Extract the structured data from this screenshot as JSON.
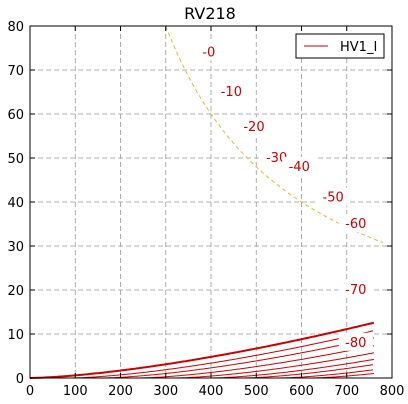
{
  "chart_data": {
    "type": "line",
    "title": "RV218",
    "xlabel": "",
    "ylabel": "",
    "xlim": [
      0,
      800
    ],
    "ylim": [
      0,
      80
    ],
    "x_ticks": [
      0,
      100,
      200,
      300,
      400,
      500,
      600,
      700,
      800
    ],
    "y_ticks": [
      0,
      10,
      20,
      30,
      40,
      50,
      60,
      70,
      80
    ],
    "grid": true,
    "legend": {
      "position": "top-right",
      "entries": [
        "HV1_I"
      ]
    },
    "colors": {
      "curves": "#cc0000",
      "dissipation": "#e8b830",
      "grid": "#999999"
    },
    "curves": [
      {
        "label": "-0",
        "v0": 0,
        "k": 0.0006,
        "emphasis": true
      },
      {
        "label": "-10",
        "v0": 90,
        "k": 0.00062
      },
      {
        "label": "-20",
        "v0": 160,
        "k": 0.00062
      },
      {
        "label": "-30",
        "v0": 240,
        "k": 0.00062
      },
      {
        "label": "-40",
        "v0": 320,
        "k": 0.00062
      },
      {
        "label": "-50",
        "v0": 400,
        "k": 0.00062
      },
      {
        "label": "-60",
        "v0": 470,
        "k": 0.00062
      },
      {
        "label": "-70",
        "v0": 550,
        "k": 0.00062
      },
      {
        "label": "-80",
        "v0": 620,
        "k": 0.00062
      }
    ],
    "dissipation_limit": {
      "power": 24000,
      "x_range": [
        300,
        780
      ]
    },
    "label_positions": [
      {
        "label": "-0",
        "x": 395,
        "y": 74
      },
      {
        "label": "-10",
        "x": 445,
        "y": 65
      },
      {
        "label": "-20",
        "x": 495,
        "y": 57
      },
      {
        "label": "-30",
        "x": 545,
        "y": 50
      },
      {
        "label": "-40",
        "x": 595,
        "y": 48
      },
      {
        "label": "-50",
        "x": 670,
        "y": 41
      },
      {
        "label": "-60",
        "x": 720,
        "y": 35
      },
      {
        "label": "-70",
        "x": 720,
        "y": 20
      },
      {
        "label": "-80",
        "x": 720,
        "y": 8
      }
    ]
  }
}
